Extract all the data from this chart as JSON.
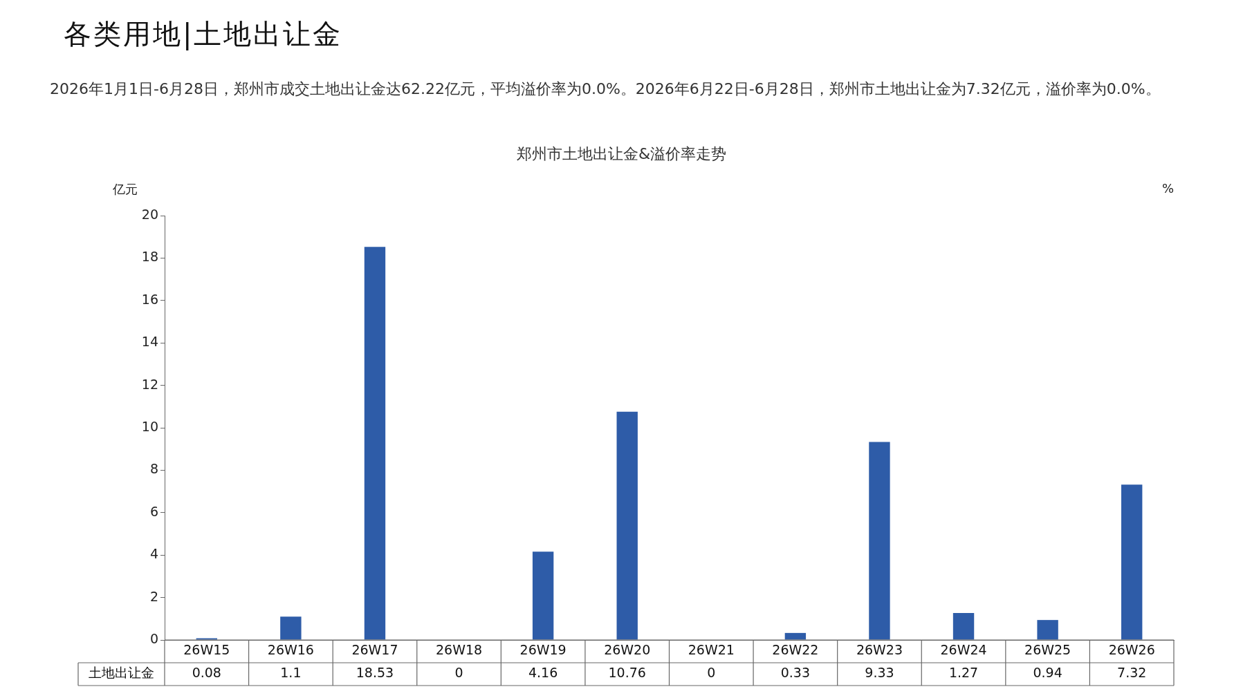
{
  "chart_data": {
    "type": "bar",
    "title": "各类用地|土地出让金",
    "subtitle": "2026年1月1日-6月28日，郑州市成交土地出让金达62.22亿元，平均溢价率为0.0%。2026年6月22日-6月28日，郑州市土地出让金为7.32亿元，溢价率为0.0%。",
    "annotations": [
      "郑州市土地出让金&溢价率走势"
    ],
    "ylabel": "亿元",
    "y2label": "%",
    "categories": [
      "26W15",
      "26W16",
      "26W17",
      "26W18",
      "26W19",
      "26W20",
      "26W21",
      "26W22",
      "26W23",
      "26W24",
      "26W25",
      "26W26"
    ],
    "series": [
      {
        "name": "土地出让金",
        "color": "#2e5ca8",
        "values": [
          0.08,
          1.1,
          18.53,
          0,
          4.16,
          10.76,
          0,
          0.33,
          9.33,
          1.27,
          0.94,
          7.32
        ]
      }
    ],
    "ylim": [
      0,
      20
    ],
    "yticks": [
      0,
      2,
      4,
      6,
      8,
      10,
      12,
      14,
      16,
      18,
      20
    ],
    "data_labels": true,
    "legend": false,
    "grid": false
  }
}
